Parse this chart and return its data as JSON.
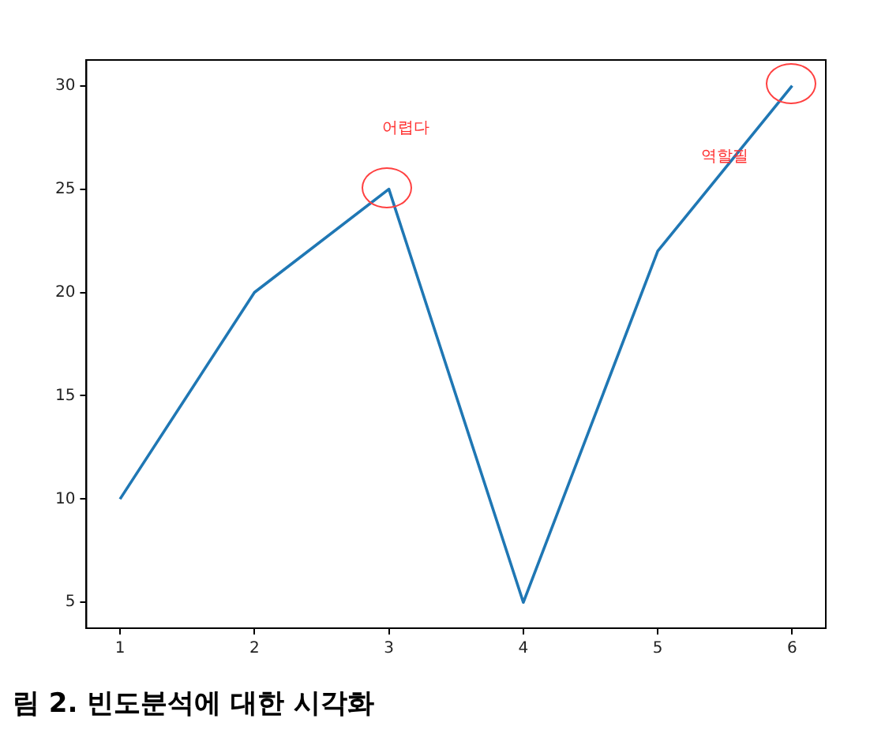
{
  "chart_data": {
    "type": "line",
    "x": [
      1,
      2,
      3,
      4,
      5,
      6
    ],
    "series": [
      {
        "color": "#1f77b4",
        "values": [
          10,
          20,
          25,
          5,
          22,
          30
        ]
      }
    ],
    "xlim": [
      0.75,
      6.25
    ],
    "xticks": [
      1,
      2,
      3,
      4,
      5,
      6
    ],
    "ylim": [
      3.75,
      31.25
    ],
    "yticks": [
      5,
      10,
      15,
      20,
      25,
      30
    ],
    "grid": false,
    "legend": false,
    "marker": "none",
    "line_style": "solid",
    "annotations": [
      "어렵다",
      "역할필",
      "림 2. 빈도분석에 대한 시각화"
    ]
  }
}
